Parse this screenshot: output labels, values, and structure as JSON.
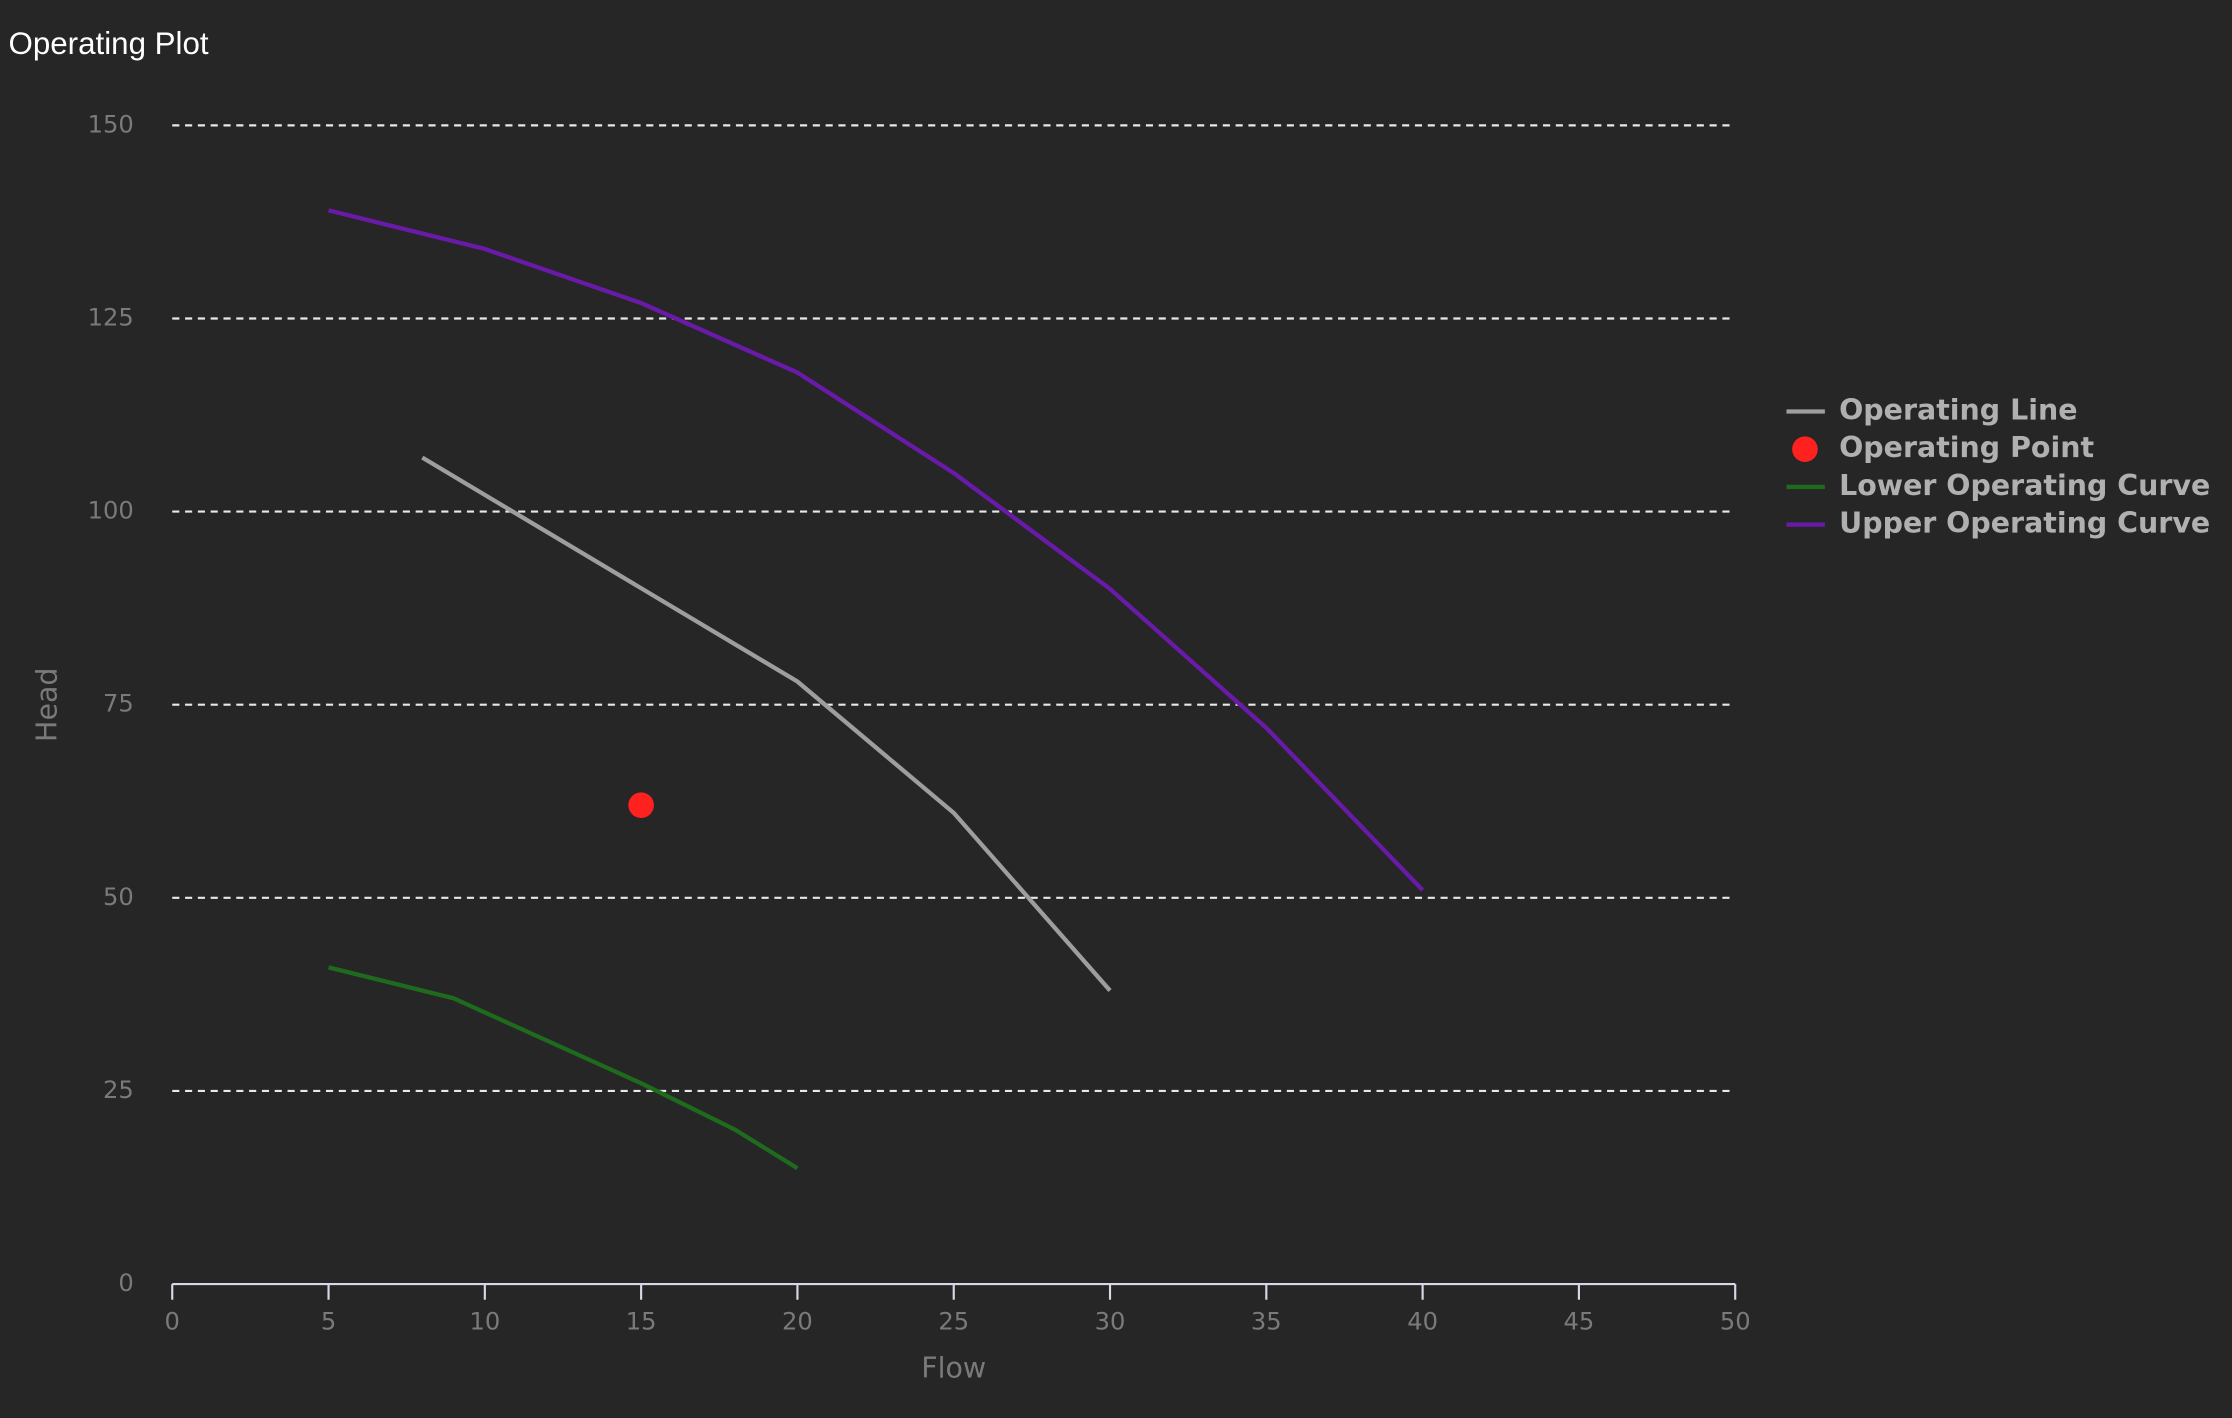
{
  "chart_data": {
    "type": "line",
    "title": "Operating Plot",
    "x_label": "Flow",
    "y_label": "Head",
    "xlim": [
      0,
      50
    ],
    "xticks": [
      0,
      5,
      10,
      15,
      20,
      25,
      30,
      35,
      40,
      45,
      50
    ],
    "ylim": [
      0,
      150
    ],
    "yticks": [
      0,
      25,
      50,
      75,
      100,
      125,
      150
    ],
    "grid": true,
    "legend": "right",
    "series": [
      {
        "name": "Operating Line",
        "type": "line",
        "color": "#9e9e9e",
        "x": [
          8,
          20,
          25,
          30
        ],
        "values": [
          107,
          78,
          61,
          38
        ]
      },
      {
        "name": "Operating Point",
        "type": "scatter",
        "color": "#ff2020",
        "x": [
          15
        ],
        "values": [
          62
        ]
      },
      {
        "name": "Lower Operating Curve",
        "type": "line",
        "color": "#1e6b1e",
        "x": [
          5,
          9,
          15,
          18,
          20
        ],
        "values": [
          41,
          37,
          26,
          20,
          15
        ]
      },
      {
        "name": "Upper Operating Curve",
        "type": "line",
        "color": "#6a1aa8",
        "x": [
          5,
          10,
          15,
          20,
          25,
          30,
          35,
          40
        ],
        "values": [
          139,
          134,
          127,
          118,
          105,
          90,
          72,
          51
        ]
      }
    ]
  }
}
